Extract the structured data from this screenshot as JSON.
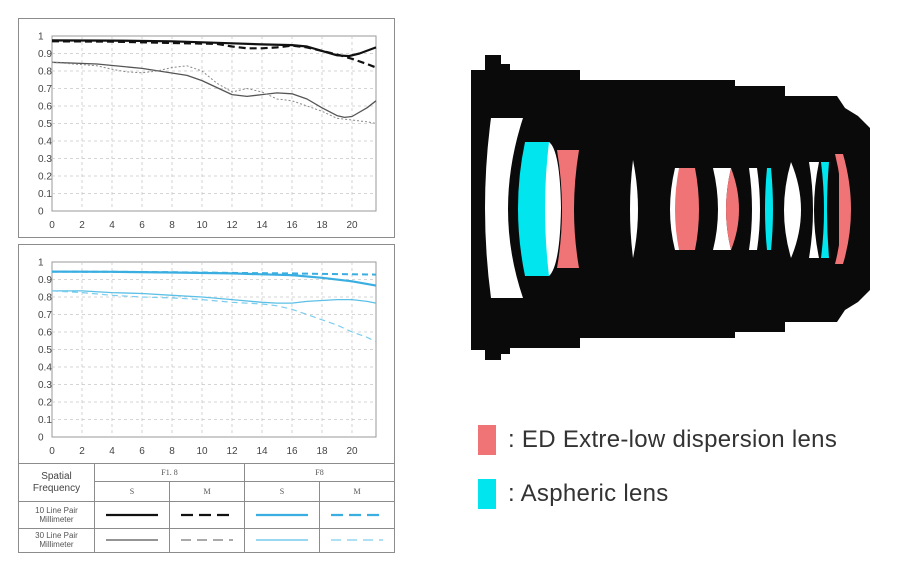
{
  "colors": {
    "ed": "#f07376",
    "aspheric": "#00e5ee",
    "black": "#111111",
    "blue": "#46b6e2",
    "gray": "#555555"
  },
  "mtf_charts": [
    {
      "yticks": [
        "0",
        "0.1",
        "0.2",
        "0.3",
        "0.4",
        "0.5",
        "0.6",
        "0.7",
        "0.8",
        "0.9",
        "1"
      ],
      "xticks": [
        "0",
        "2",
        "4",
        "6",
        "8",
        "10",
        "12",
        "14",
        "16",
        "18",
        "20"
      ]
    },
    {
      "yticks": [
        "0",
        "0.1",
        "0.2",
        "0.3",
        "0.4",
        "0.5",
        "0.6",
        "0.7",
        "0.8",
        "0.9",
        "1"
      ],
      "xticks": [
        "0",
        "2",
        "4",
        "6",
        "8",
        "10",
        "12",
        "14",
        "16",
        "18",
        "20"
      ]
    }
  ],
  "chart_data": [
    {
      "type": "line",
      "xlim": [
        0,
        21.6
      ],
      "ylim": [
        0,
        1
      ],
      "grid": true,
      "series": [
        {
          "style": "10lp-S",
          "color": "#111111",
          "dash": "",
          "width": 2.2,
          "x": [
            0,
            4,
            8,
            12,
            14,
            16,
            17,
            18,
            19,
            19.8,
            20.5,
            21.6
          ],
          "y": [
            0.975,
            0.974,
            0.97,
            0.958,
            0.952,
            0.948,
            0.94,
            0.915,
            0.89,
            0.885,
            0.9,
            0.935
          ]
        },
        {
          "style": "10lp-M",
          "color": "#111111",
          "dash": "7,4",
          "width": 2.2,
          "x": [
            0,
            4,
            8,
            11,
            12,
            13,
            14,
            15,
            16,
            17,
            18,
            19,
            20,
            21,
            21.6
          ],
          "y": [
            0.97,
            0.968,
            0.96,
            0.955,
            0.94,
            0.93,
            0.93,
            0.935,
            0.945,
            0.935,
            0.915,
            0.895,
            0.87,
            0.84,
            0.82
          ]
        },
        {
          "style": "30lp-S",
          "color": "#555555",
          "dash": "",
          "width": 1.3,
          "x": [
            0,
            3,
            6,
            9,
            10,
            11,
            12,
            13,
            14,
            15,
            16,
            17,
            18,
            19,
            19.5,
            20,
            21,
            21.6
          ],
          "y": [
            0.85,
            0.84,
            0.815,
            0.775,
            0.745,
            0.705,
            0.665,
            0.655,
            0.665,
            0.675,
            0.67,
            0.64,
            0.59,
            0.545,
            0.535,
            0.54,
            0.59,
            0.63
          ]
        },
        {
          "style": "30lp-M",
          "color": "#888888",
          "dash": "2,2",
          "width": 1,
          "x": [
            0,
            3,
            4,
            5,
            6,
            7,
            8,
            9,
            10,
            11,
            12,
            13,
            14,
            15,
            16,
            17,
            18,
            19,
            20,
            21,
            21.6
          ],
          "y": [
            0.85,
            0.83,
            0.81,
            0.795,
            0.79,
            0.8,
            0.82,
            0.83,
            0.8,
            0.73,
            0.68,
            0.7,
            0.68,
            0.64,
            0.63,
            0.6,
            0.57,
            0.53,
            0.52,
            0.51,
            0.5
          ]
        }
      ]
    },
    {
      "type": "line",
      "xlim": [
        0,
        21.6
      ],
      "ylim": [
        0,
        1
      ],
      "grid": true,
      "series": [
        {
          "style": "10lp-S",
          "color": "#3aaee0",
          "dash": "",
          "width": 2.2,
          "x": [
            0,
            4,
            8,
            12,
            14,
            16,
            18,
            20,
            21.6
          ],
          "y": [
            0.945,
            0.944,
            0.94,
            0.935,
            0.93,
            0.925,
            0.91,
            0.89,
            0.865
          ]
        },
        {
          "style": "10lp-M",
          "color": "#3aaee0",
          "dash": "6,4",
          "width": 2,
          "x": [
            0,
            4,
            8,
            12,
            16,
            18,
            20,
            21.6
          ],
          "y": [
            0.945,
            0.944,
            0.942,
            0.938,
            0.935,
            0.932,
            0.93,
            0.928
          ]
        },
        {
          "style": "30lp-S",
          "color": "#5cc0e6",
          "dash": "",
          "width": 1.3,
          "x": [
            0,
            2,
            4,
            6,
            8,
            10,
            12,
            14,
            15,
            16,
            17,
            18,
            19,
            20,
            21,
            21.6
          ],
          "y": [
            0.835,
            0.835,
            0.825,
            0.82,
            0.81,
            0.8,
            0.785,
            0.77,
            0.765,
            0.765,
            0.775,
            0.78,
            0.785,
            0.785,
            0.775,
            0.765
          ]
        },
        {
          "style": "30lp-M",
          "color": "#7ccdee",
          "dash": "6,4",
          "width": 1.2,
          "x": [
            0,
            2,
            4,
            6,
            8,
            10,
            12,
            14,
            15,
            16,
            17,
            18,
            19,
            20,
            21,
            21.6
          ],
          "y": [
            0.835,
            0.825,
            0.81,
            0.8,
            0.795,
            0.785,
            0.77,
            0.76,
            0.75,
            0.73,
            0.7,
            0.67,
            0.64,
            0.6,
            0.57,
            0.545
          ]
        }
      ]
    }
  ],
  "legend_table": {
    "spatial_frequency": "Spatial Frequency",
    "aperture_1": "F1. 8",
    "aperture_2": "F8",
    "s": "S",
    "m": "M",
    "row_10": "10 Line Pair Millimeter",
    "row_30": "30 Line Pair Millimeter"
  },
  "lens_legend": {
    "ed": ": ED Extre-low dispersion lens",
    "aspheric": ": Aspheric lens"
  }
}
